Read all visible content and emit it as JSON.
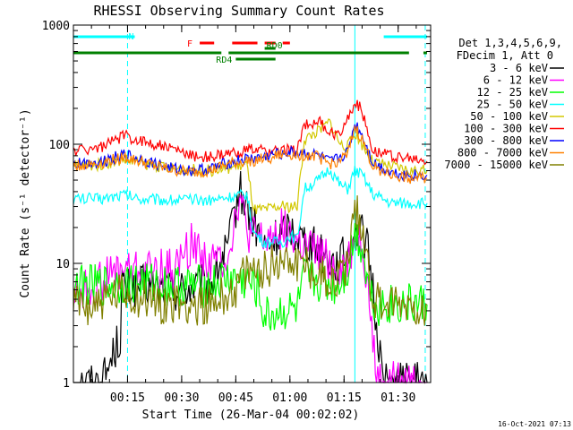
{
  "chart_data": {
    "type": "line",
    "title": "RHESSI Observing Summary Count Rates",
    "xlabel": "Start Time (26-Mar-04 00:02:02)",
    "ylabel": "Count Rate (s⁻¹ detector⁻¹)",
    "yscale": "log",
    "ylim": [
      1,
      1000
    ],
    "xlim_minutes": [
      2,
      101
    ],
    "x_ticks": [
      {
        "minute": 17,
        "label": "00:15"
      },
      {
        "minute": 32,
        "label": "00:30"
      },
      {
        "minute": 47,
        "label": "00:45"
      },
      {
        "minute": 62,
        "label": "01:00"
      },
      {
        "minute": 77,
        "label": "01:15"
      },
      {
        "minute": 92,
        "label": "01:30"
      }
    ],
    "y_ticks": [
      {
        "value": 1,
        "label": "1"
      },
      {
        "value": 10,
        "label": "10"
      },
      {
        "value": 100,
        "label": "100"
      },
      {
        "value": 1000,
        "label": "1000"
      }
    ],
    "legend": {
      "header_line1": "Det 1,3,4,5,6,9,",
      "header_line2": "FDecim 1, Att 0",
      "placement": "right"
    },
    "series": [
      {
        "name": "3 - 6 keV",
        "color": "#000000",
        "x": [
          2,
          10,
          15,
          15.5,
          16,
          17,
          20,
          30,
          40,
          45,
          48,
          50,
          55,
          58,
          62,
          65,
          70,
          75,
          78,
          80,
          83,
          85,
          86,
          88,
          90,
          95,
          100
        ],
        "y": [
          1,
          1,
          2.5,
          7,
          6,
          6,
          6.5,
          6,
          6.5,
          14,
          42,
          30,
          13,
          16,
          20,
          17,
          13,
          10,
          12,
          20,
          16,
          6,
          3,
          1,
          1,
          1,
          1
        ]
      },
      {
        "name": "6 - 12 keV",
        "color": "#ff00ff",
        "x": [
          2,
          8,
          12,
          16,
          20,
          30,
          35,
          40,
          45,
          48,
          50,
          55,
          60,
          65,
          70,
          75,
          78,
          80,
          82,
          84,
          86,
          88,
          95,
          100
        ],
        "y": [
          5.5,
          6.5,
          8,
          9,
          8.5,
          9,
          15,
          10,
          12,
          38,
          18,
          15,
          20,
          14,
          12,
          9,
          10,
          17,
          16,
          5,
          1,
          1,
          1,
          1
        ]
      },
      {
        "name": "12 - 25 keV",
        "color": "#00ff00",
        "x": [
          2,
          10,
          20,
          30,
          40,
          45,
          50,
          53,
          55,
          60,
          64,
          66,
          70,
          75,
          78,
          80,
          82,
          84,
          86,
          90,
          100
        ],
        "y": [
          6.5,
          6.5,
          7,
          6.5,
          6.5,
          7.5,
          7,
          6,
          3.5,
          4,
          4,
          7.5,
          7,
          6.5,
          9,
          18,
          14,
          6,
          4.5,
          4.5,
          4.5
        ]
      },
      {
        "name": "25 - 50 keV",
        "color": "#00ffff",
        "x": [
          2,
          10,
          16,
          20,
          30,
          40,
          45,
          50,
          52,
          55,
          60,
          62,
          64,
          66,
          70,
          73,
          76,
          78,
          80,
          82,
          85,
          90,
          95,
          100
        ],
        "y": [
          35,
          35,
          38,
          35,
          34,
          34,
          36,
          38,
          18,
          15,
          15,
          17,
          16,
          42,
          50,
          62,
          45,
          42,
          60,
          55,
          38,
          32,
          32,
          32
        ]
      },
      {
        "name": "50 - 100 keV",
        "color": "#d2c800",
        "x": [
          2,
          10,
          16,
          20,
          30,
          40,
          45,
          50,
          52,
          55,
          60,
          62,
          64,
          66,
          70,
          73,
          76,
          78,
          80,
          82,
          85,
          90,
          95,
          100
        ],
        "y": [
          65,
          68,
          75,
          70,
          62,
          60,
          63,
          68,
          28,
          28,
          30,
          30,
          30,
          110,
          130,
          155,
          100,
          95,
          125,
          100,
          70,
          65,
          60,
          60
        ]
      },
      {
        "name": "100 - 300 keV",
        "color": "#ff0000",
        "x": [
          2,
          10,
          16,
          20,
          25,
          30,
          35,
          40,
          45,
          50,
          55,
          60,
          64,
          66,
          70,
          73,
          75,
          78,
          80,
          82,
          85,
          90,
          95,
          100
        ],
        "y": [
          88,
          95,
          118,
          108,
          100,
          90,
          80,
          78,
          82,
          90,
          88,
          88,
          90,
          145,
          155,
          125,
          118,
          160,
          230,
          190,
          90,
          80,
          75,
          72
        ]
      },
      {
        "name": "300 - 800 keV",
        "color": "#0000ff",
        "x": [
          2,
          10,
          16,
          20,
          25,
          30,
          35,
          40,
          45,
          50,
          55,
          60,
          65,
          70,
          73,
          75,
          78,
          80,
          82,
          85,
          90,
          95,
          100
        ],
        "y": [
          68,
          72,
          82,
          76,
          68,
          62,
          60,
          62,
          70,
          75,
          78,
          85,
          85,
          80,
          70,
          75,
          85,
          150,
          120,
          70,
          58,
          55,
          55
        ]
      },
      {
        "name": "800 - 7000 keV",
        "color": "#ff8000",
        "x": [
          2,
          10,
          16,
          20,
          25,
          30,
          35,
          40,
          45,
          50,
          55,
          60,
          65,
          70,
          73,
          75,
          78,
          80,
          82,
          85,
          90,
          95,
          100
        ],
        "y": [
          65,
          70,
          78,
          72,
          65,
          60,
          58,
          60,
          68,
          72,
          75,
          82,
          82,
          78,
          68,
          72,
          80,
          140,
          110,
          65,
          55,
          52,
          52
        ]
      },
      {
        "name": "7000 - 15000 keV",
        "color": "#808000",
        "x": [
          2,
          8,
          12,
          16,
          20,
          30,
          40,
          45,
          50,
          55,
          60,
          62,
          66,
          70,
          75,
          78,
          80,
          82,
          85,
          88,
          90,
          95,
          100
        ],
        "y": [
          4.5,
          4.5,
          5,
          5.5,
          5,
          4.5,
          4.5,
          5.5,
          8,
          9,
          11,
          11,
          10,
          8,
          7,
          10,
          28,
          22,
          5,
          4.5,
          4.5,
          4.5,
          4.5
        ]
      }
    ],
    "flags": {
      "N": {
        "label": "N",
        "color": "#00ffff",
        "segments": [
          [
            2,
            19
          ],
          [
            88,
            100
          ]
        ]
      },
      "F": {
        "label": "F",
        "color": "#ff0000",
        "segments": [
          [
            37,
            41
          ],
          [
            46,
            53
          ],
          [
            55,
            58
          ],
          [
            60,
            62
          ]
        ]
      },
      "RD0": {
        "label": "RD0",
        "color": "#008000",
        "segments": [
          [
            55,
            58
          ]
        ]
      },
      "RD_line": {
        "color": "#008000",
        "segments": [
          [
            2,
            43
          ],
          [
            45,
            95
          ],
          [
            99,
            100
          ]
        ]
      },
      "RD4": {
        "label": "RD4",
        "color": "#008000",
        "segments": [
          [
            47,
            58
          ]
        ]
      }
    },
    "vertical_lines": [
      {
        "minute": 17,
        "color": "#00ffff",
        "style": "dashed"
      },
      {
        "minute": 80,
        "color": "#00ffff",
        "style": "solid"
      },
      {
        "minute": 99.5,
        "color": "#00ffff",
        "style": "dashed"
      }
    ],
    "timestamp": "16-Oct-2021 07:13"
  }
}
